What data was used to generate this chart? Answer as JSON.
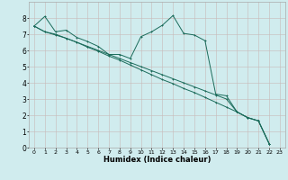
{
  "xlabel": "Humidex (Indice chaleur)",
  "background_color": "#d0ecee",
  "grid_color": "#c8b8b8",
  "line_color": "#1a6b5a",
  "xlim": [
    -0.5,
    23.5
  ],
  "ylim": [
    0,
    9
  ],
  "xticks": [
    0,
    1,
    2,
    3,
    4,
    5,
    6,
    7,
    8,
    9,
    10,
    11,
    12,
    13,
    14,
    15,
    16,
    17,
    18,
    19,
    20,
    21,
    22,
    23
  ],
  "yticks": [
    0,
    1,
    2,
    3,
    4,
    5,
    6,
    7,
    8
  ],
  "s1x": [
    0,
    1,
    2,
    3,
    4,
    5,
    6,
    7,
    8,
    9,
    10,
    11,
    12,
    13,
    14,
    15,
    16,
    17,
    18,
    19,
    20,
    21,
    22
  ],
  "s1y": [
    7.5,
    8.1,
    7.15,
    7.25,
    6.8,
    6.55,
    6.25,
    5.75,
    5.75,
    5.5,
    6.85,
    7.15,
    7.55,
    8.15,
    7.05,
    6.95,
    6.6,
    3.3,
    3.2,
    2.2,
    1.85,
    1.65,
    0.25
  ],
  "s2x": [
    0,
    1,
    2,
    3,
    4,
    5,
    6,
    7,
    8,
    9,
    10,
    11,
    12,
    13,
    14,
    15,
    16,
    17,
    18,
    19,
    20,
    21,
    22
  ],
  "s2y": [
    7.5,
    7.15,
    7.0,
    6.75,
    6.5,
    6.25,
    6.0,
    5.75,
    5.5,
    5.25,
    5.0,
    4.75,
    4.5,
    4.25,
    4.0,
    3.75,
    3.5,
    3.25,
    3.0,
    2.2,
    1.85,
    1.65,
    0.25
  ],
  "s3x": [
    0,
    1,
    2,
    3,
    4,
    5,
    6,
    7,
    8,
    9,
    10,
    11,
    12,
    13,
    14,
    15,
    16,
    17,
    18,
    19,
    20,
    21,
    22
  ],
  "s3y": [
    7.5,
    7.15,
    6.95,
    6.75,
    6.5,
    6.2,
    5.95,
    5.65,
    5.4,
    5.1,
    4.8,
    4.5,
    4.2,
    3.95,
    3.65,
    3.4,
    3.1,
    2.8,
    2.5,
    2.2,
    1.85,
    1.65,
    0.25
  ]
}
